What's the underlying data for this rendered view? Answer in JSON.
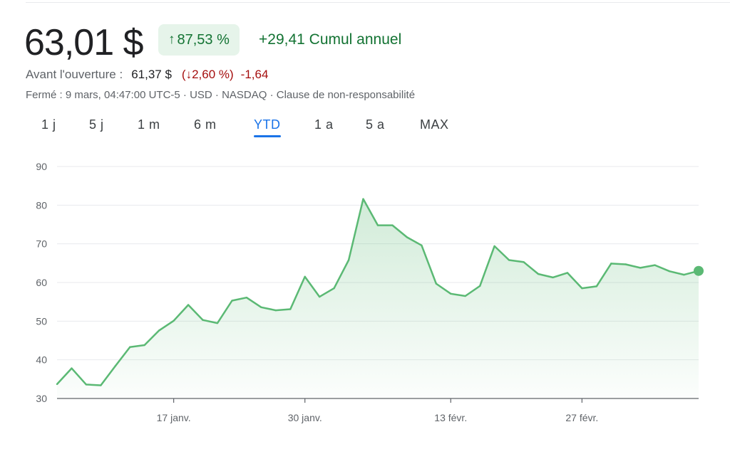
{
  "quote": {
    "price": "63,01 $",
    "change_pct_arrow": "↑",
    "change_pct": "87,53 %",
    "change_abs_ytd": "+29,41 Cumul annuel"
  },
  "premarket": {
    "label": "Avant l'ouverture :",
    "price": "61,37 $",
    "change_pct": "(↓2,60 %)",
    "change_abs": "-1,64"
  },
  "meta_line": "Fermé : 9 mars, 04:47:00 UTC-5 · USD · NASDAQ · Clause de non-responsabilité",
  "tabs": [
    {
      "label": "1 j"
    },
    {
      "label": "5 j"
    },
    {
      "label": "1 m"
    },
    {
      "label": "6 m"
    },
    {
      "label": "YTD",
      "active": true
    },
    {
      "label": "1 a"
    },
    {
      "label": "5 a"
    },
    {
      "label": "MAX"
    }
  ],
  "colors": {
    "up": "#137333",
    "down": "#a50e0e",
    "line": "#5bb974",
    "accent": "#1a73e8"
  },
  "chart_data": {
    "type": "line",
    "ylim": [
      30,
      90
    ],
    "yticks": [
      30,
      40,
      50,
      60,
      70,
      80,
      90
    ],
    "xticks": [
      {
        "label": "17 janv.",
        "index": 8
      },
      {
        "label": "30 janv.",
        "index": 17
      },
      {
        "label": "13 févr.",
        "index": 27
      },
      {
        "label": "27 févr.",
        "index": 36
      }
    ],
    "grid": true,
    "legend": "none",
    "series": [
      {
        "values": [
          33.7,
          37.8,
          33.6,
          33.4,
          38.4,
          43.3,
          43.8,
          47.6,
          50.1,
          54.2,
          50.3,
          49.5,
          55.3,
          56.1,
          53.6,
          52.8,
          53.1,
          61.5,
          56.3,
          58.5,
          65.8,
          81.6,
          74.8,
          74.8,
          71.7,
          69.6,
          59.7,
          57.1,
          56.5,
          59.1,
          69.4,
          65.8,
          65.3,
          62.2,
          61.3,
          62.5,
          58.5,
          59.0,
          64.9,
          64.7,
          63.8,
          64.5,
          62.9,
          62.0,
          63.0
        ]
      }
    ]
  }
}
